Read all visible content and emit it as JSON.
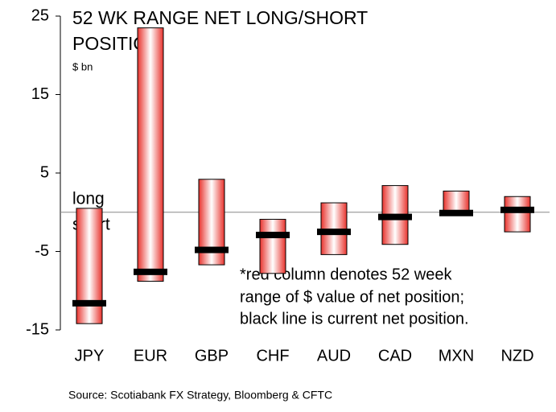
{
  "chart_data": {
    "type": "range",
    "title": [
      "52 WK RANGE NET LONG/SHORT",
      "POSITION"
    ],
    "subtitle": "$ bn",
    "annotations": {
      "long": "long",
      "short": "short"
    },
    "note": [
      "*red column denotes 52 week",
      "range of $ value of net position;",
      "black line is current net position."
    ],
    "source": "Source: Scotiabank FX Strategy, Bloomberg & CFTC",
    "categories": [
      "JPY",
      "EUR",
      "GBP",
      "CHF",
      "AUD",
      "CAD",
      "MXN",
      "NZD"
    ],
    "high": [
      0.5,
      23.5,
      4.2,
      -0.9,
      1.2,
      3.4,
      2.7,
      2.0
    ],
    "low": [
      -14.2,
      -8.8,
      -6.7,
      -7.8,
      -5.4,
      -4.1,
      -0.4,
      -2.5
    ],
    "current": [
      -11.6,
      -7.6,
      -4.8,
      -2.9,
      -2.5,
      -0.6,
      -0.1,
      0.3
    ],
    "color": "#e8322c",
    "current_color": "#000000",
    "ylim": [
      -15,
      25
    ],
    "yticks": [
      25,
      15,
      5,
      -5,
      -15
    ]
  }
}
